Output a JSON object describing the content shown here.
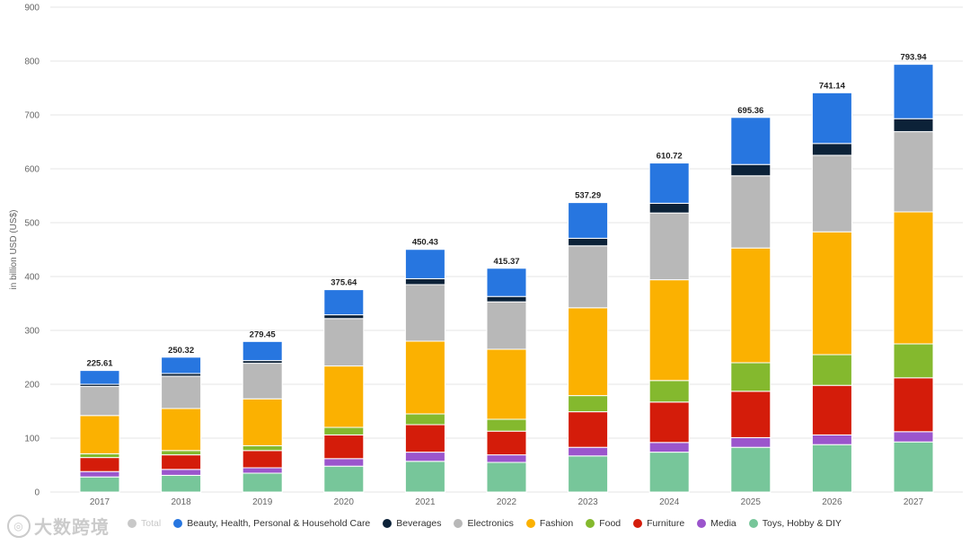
{
  "chart_data": {
    "type": "bar",
    "stacked": true,
    "ylabel": "in billion USD (US$)",
    "ylim": [
      0,
      900
    ],
    "yticks": [
      0,
      100,
      200,
      300,
      400,
      500,
      600,
      700,
      800,
      900
    ],
    "grid": true,
    "legend_position": "bottom",
    "categories": [
      "2017",
      "2018",
      "2019",
      "2020",
      "2021",
      "2022",
      "2023",
      "2024",
      "2025",
      "2026",
      "2027"
    ],
    "totals": [
      "225.61",
      "250.32",
      "279.45",
      "375.64",
      "450.43",
      "415.37",
      "537.29",
      "610.72",
      "695.36",
      "741.14",
      "793.94"
    ],
    "series": [
      {
        "name": "Toys, Hobby & DIY",
        "color": "#77c69a",
        "values": [
          28,
          31,
          35,
          48,
          57,
          55,
          67,
          74,
          83,
          88,
          93
        ]
      },
      {
        "name": "Media",
        "color": "#9b55cc",
        "values": [
          10,
          11,
          10,
          14,
          17,
          14,
          16,
          18,
          18,
          18,
          19
        ]
      },
      {
        "name": "Furniture",
        "color": "#d41c0a",
        "values": [
          26,
          27,
          32,
          44,
          51,
          44,
          66,
          75,
          86,
          92,
          100
        ]
      },
      {
        "name": "Food",
        "color": "#84b92e",
        "values": [
          7,
          8,
          9,
          14,
          20,
          22,
          30,
          40,
          53,
          57,
          63
        ]
      },
      {
        "name": "Fashion",
        "color": "#fbb101",
        "values": [
          71,
          78,
          87,
          114,
          135,
          130,
          163,
          187,
          213,
          228,
          245
        ]
      },
      {
        "name": "Electronics",
        "color": "#b8b8b8",
        "values": [
          54,
          60,
          66,
          88,
          105,
          88,
          115,
          124,
          134,
          142,
          149
        ]
      },
      {
        "name": "Beverages",
        "color": "#0c2238",
        "values": [
          4,
          5,
          5,
          7,
          11,
          10,
          14,
          18,
          21,
          22,
          24
        ]
      },
      {
        "name": "Beauty, Health, Personal & Household Care",
        "color": "#2776e0",
        "values": [
          25.61,
          30.32,
          35.45,
          46.64,
          54.43,
          52.37,
          66.29,
          74.72,
          87.36,
          94.14,
          100.94
        ]
      }
    ],
    "legend": [
      {
        "name": "Total",
        "color": "#c8c8c8",
        "hidden": true
      },
      {
        "name": "Beauty, Health, Personal & Household Care",
        "color": "#2776e0"
      },
      {
        "name": "Beverages",
        "color": "#0c2238"
      },
      {
        "name": "Electronics",
        "color": "#b8b8b8"
      },
      {
        "name": "Fashion",
        "color": "#fbb101"
      },
      {
        "name": "Food",
        "color": "#84b92e"
      },
      {
        "name": "Furniture",
        "color": "#d41c0a"
      },
      {
        "name": "Media",
        "color": "#9b55cc"
      },
      {
        "name": "Toys, Hobby & DIY",
        "color": "#77c69a"
      }
    ]
  },
  "watermark": {
    "text": "大数跨境"
  }
}
